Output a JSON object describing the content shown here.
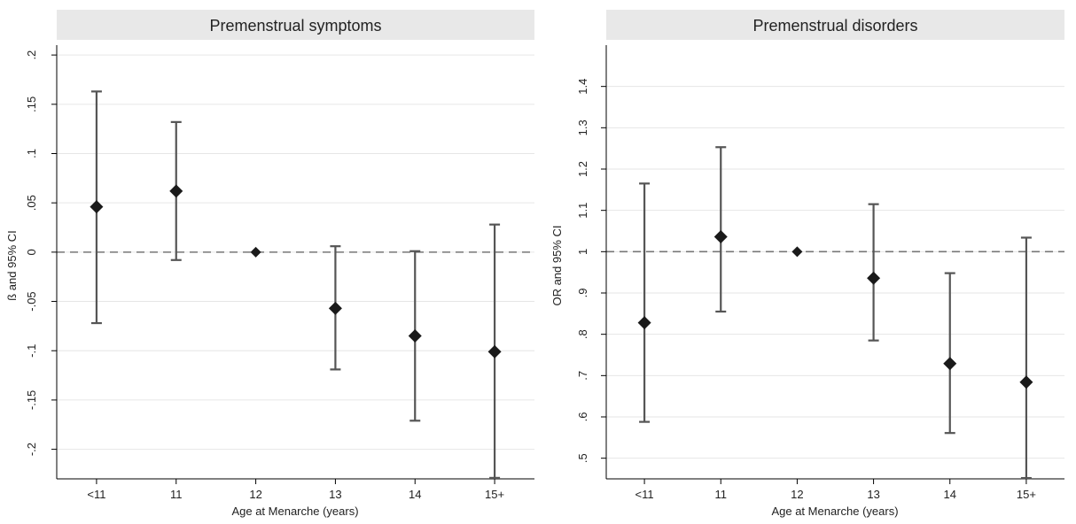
{
  "colors": {
    "title_band": "#e8e8e8",
    "marker": "#1a1a1a",
    "errorbar": "#555555",
    "gridline": "#e6e6e6",
    "refline": "#777777",
    "axis": "#000000"
  },
  "chart_data": [
    {
      "type": "scatter",
      "title": "Premenstrual symptoms",
      "xlabel": "Age at Menarche (years)",
      "ylabel": "ß and 95% CI",
      "categories": [
        "<11",
        "11",
        "12",
        "13",
        "14",
        "15+"
      ],
      "values": [
        0.046,
        0.062,
        0.0,
        -0.057,
        -0.085,
        -0.101
      ],
      "ci_low": [
        -0.072,
        -0.008,
        0.0,
        -0.119,
        -0.171,
        -0.229
      ],
      "ci_high": [
        0.163,
        0.132,
        0.0,
        0.006,
        0.001,
        0.028
      ],
      "reference_line": 0,
      "ylim": [
        -0.23,
        0.21
      ],
      "yticks": [
        -0.2,
        -0.15,
        -0.1,
        -0.05,
        0,
        0.05,
        0.1,
        0.15,
        0.2
      ],
      "ytick_labels": [
        "-.2",
        "-.15",
        "-.1",
        "-.05",
        "0",
        ".05",
        ".1",
        ".15",
        ".2"
      ],
      "grid": true
    },
    {
      "type": "scatter",
      "title": "Premenstrual disorders",
      "xlabel": "Age at Menarche (years)",
      "ylabel": "OR and 95% CI",
      "categories": [
        "<11",
        "11",
        "12",
        "13",
        "14",
        "15+"
      ],
      "values": [
        0.828,
        1.036,
        1.0,
        0.936,
        0.729,
        0.684
      ],
      "ci_low": [
        0.588,
        0.855,
        1.0,
        0.785,
        0.561,
        0.452
      ],
      "ci_high": [
        1.165,
        1.253,
        1.0,
        1.115,
        0.948,
        1.034
      ],
      "reference_line": 1,
      "ylim": [
        0.45,
        1.5
      ],
      "yticks": [
        0.5,
        0.6,
        0.7,
        0.8,
        0.9,
        1.0,
        1.1,
        1.2,
        1.3,
        1.4
      ],
      "ytick_labels": [
        ".5",
        ".6",
        ".7",
        ".8",
        ".9",
        "1",
        "1.1",
        "1.2",
        "1.3",
        "1.4"
      ],
      "grid": true
    }
  ]
}
